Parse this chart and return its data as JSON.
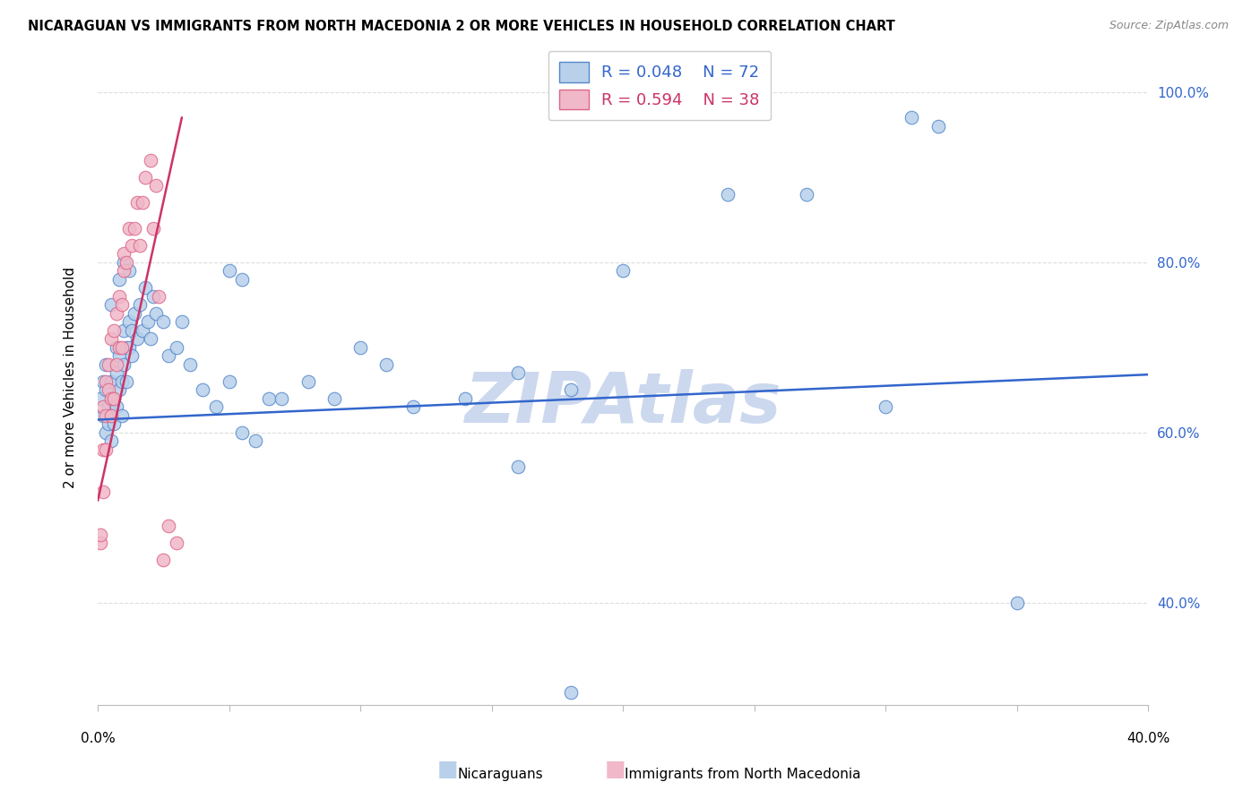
{
  "title": "NICARAGUAN VS IMMIGRANTS FROM NORTH MACEDONIA 2 OR MORE VEHICLES IN HOUSEHOLD CORRELATION CHART",
  "source": "Source: ZipAtlas.com",
  "ylabel": "2 or more Vehicles in Household",
  "ytick_labels": [
    "40.0%",
    "60.0%",
    "80.0%",
    "100.0%"
  ],
  "ytick_vals": [
    0.4,
    0.6,
    0.8,
    1.0
  ],
  "xlim": [
    0.0,
    0.4
  ],
  "ylim": [
    0.28,
    1.05
  ],
  "blue_R": "0.048",
  "blue_N": "72",
  "pink_R": "0.594",
  "pink_N": "38",
  "blue_face": "#b8d0ea",
  "blue_edge": "#5588cc",
  "pink_face": "#f0b8c8",
  "pink_edge": "#dd6688",
  "blue_line": "#3366cc",
  "pink_line": "#cc3366",
  "grid_color": "#dddddd",
  "watermark": "ZIPAtlas",
  "watermark_color": "#ccd8ee",
  "blue_x": [
    0.001,
    0.002,
    0.002,
    0.003,
    0.003,
    0.003,
    0.004,
    0.004,
    0.005,
    0.005,
    0.005,
    0.006,
    0.006,
    0.007,
    0.007,
    0.007,
    0.008,
    0.008,
    0.009,
    0.009,
    0.01,
    0.01,
    0.011,
    0.011,
    0.012,
    0.012,
    0.013,
    0.013,
    0.014,
    0.015,
    0.016,
    0.017,
    0.018,
    0.019,
    0.02,
    0.021,
    0.022,
    0.025,
    0.027,
    0.03,
    0.032,
    0.035,
    0.04,
    0.045,
    0.05,
    0.055,
    0.06,
    0.065,
    0.07,
    0.08,
    0.09,
    0.1,
    0.11,
    0.12,
    0.14,
    0.16,
    0.18,
    0.2,
    0.24,
    0.27,
    0.3,
    0.31,
    0.32,
    0.35,
    0.005,
    0.008,
    0.01,
    0.012,
    0.05,
    0.055,
    0.16,
    0.18
  ],
  "blue_y": [
    0.64,
    0.62,
    0.66,
    0.6,
    0.65,
    0.68,
    0.61,
    0.63,
    0.59,
    0.62,
    0.66,
    0.61,
    0.64,
    0.63,
    0.67,
    0.7,
    0.65,
    0.69,
    0.62,
    0.66,
    0.68,
    0.72,
    0.66,
    0.7,
    0.73,
    0.7,
    0.72,
    0.69,
    0.74,
    0.71,
    0.75,
    0.72,
    0.77,
    0.73,
    0.71,
    0.76,
    0.74,
    0.73,
    0.69,
    0.7,
    0.73,
    0.68,
    0.65,
    0.63,
    0.66,
    0.6,
    0.59,
    0.64,
    0.64,
    0.66,
    0.64,
    0.7,
    0.68,
    0.63,
    0.64,
    0.67,
    0.65,
    0.79,
    0.88,
    0.88,
    0.63,
    0.97,
    0.96,
    0.4,
    0.75,
    0.78,
    0.8,
    0.79,
    0.79,
    0.78,
    0.56,
    0.295
  ],
  "pink_x": [
    0.001,
    0.001,
    0.002,
    0.002,
    0.002,
    0.003,
    0.003,
    0.003,
    0.004,
    0.004,
    0.005,
    0.005,
    0.005,
    0.006,
    0.006,
    0.007,
    0.007,
    0.008,
    0.008,
    0.009,
    0.009,
    0.01,
    0.01,
    0.011,
    0.012,
    0.013,
    0.014,
    0.015,
    0.016,
    0.017,
    0.018,
    0.02,
    0.021,
    0.022,
    0.023,
    0.025,
    0.027,
    0.03
  ],
  "pink_y": [
    0.47,
    0.48,
    0.53,
    0.63,
    0.58,
    0.62,
    0.66,
    0.58,
    0.65,
    0.68,
    0.62,
    0.64,
    0.71,
    0.64,
    0.72,
    0.68,
    0.74,
    0.7,
    0.76,
    0.7,
    0.75,
    0.79,
    0.81,
    0.8,
    0.84,
    0.82,
    0.84,
    0.87,
    0.82,
    0.87,
    0.9,
    0.92,
    0.84,
    0.89,
    0.76,
    0.45,
    0.49,
    0.47
  ],
  "blue_trend_x": [
    0.0,
    0.4
  ],
  "blue_trend_y": [
    0.615,
    0.668
  ],
  "pink_trend_x": [
    0.0,
    0.032
  ],
  "pink_trend_y": [
    0.52,
    0.97
  ]
}
